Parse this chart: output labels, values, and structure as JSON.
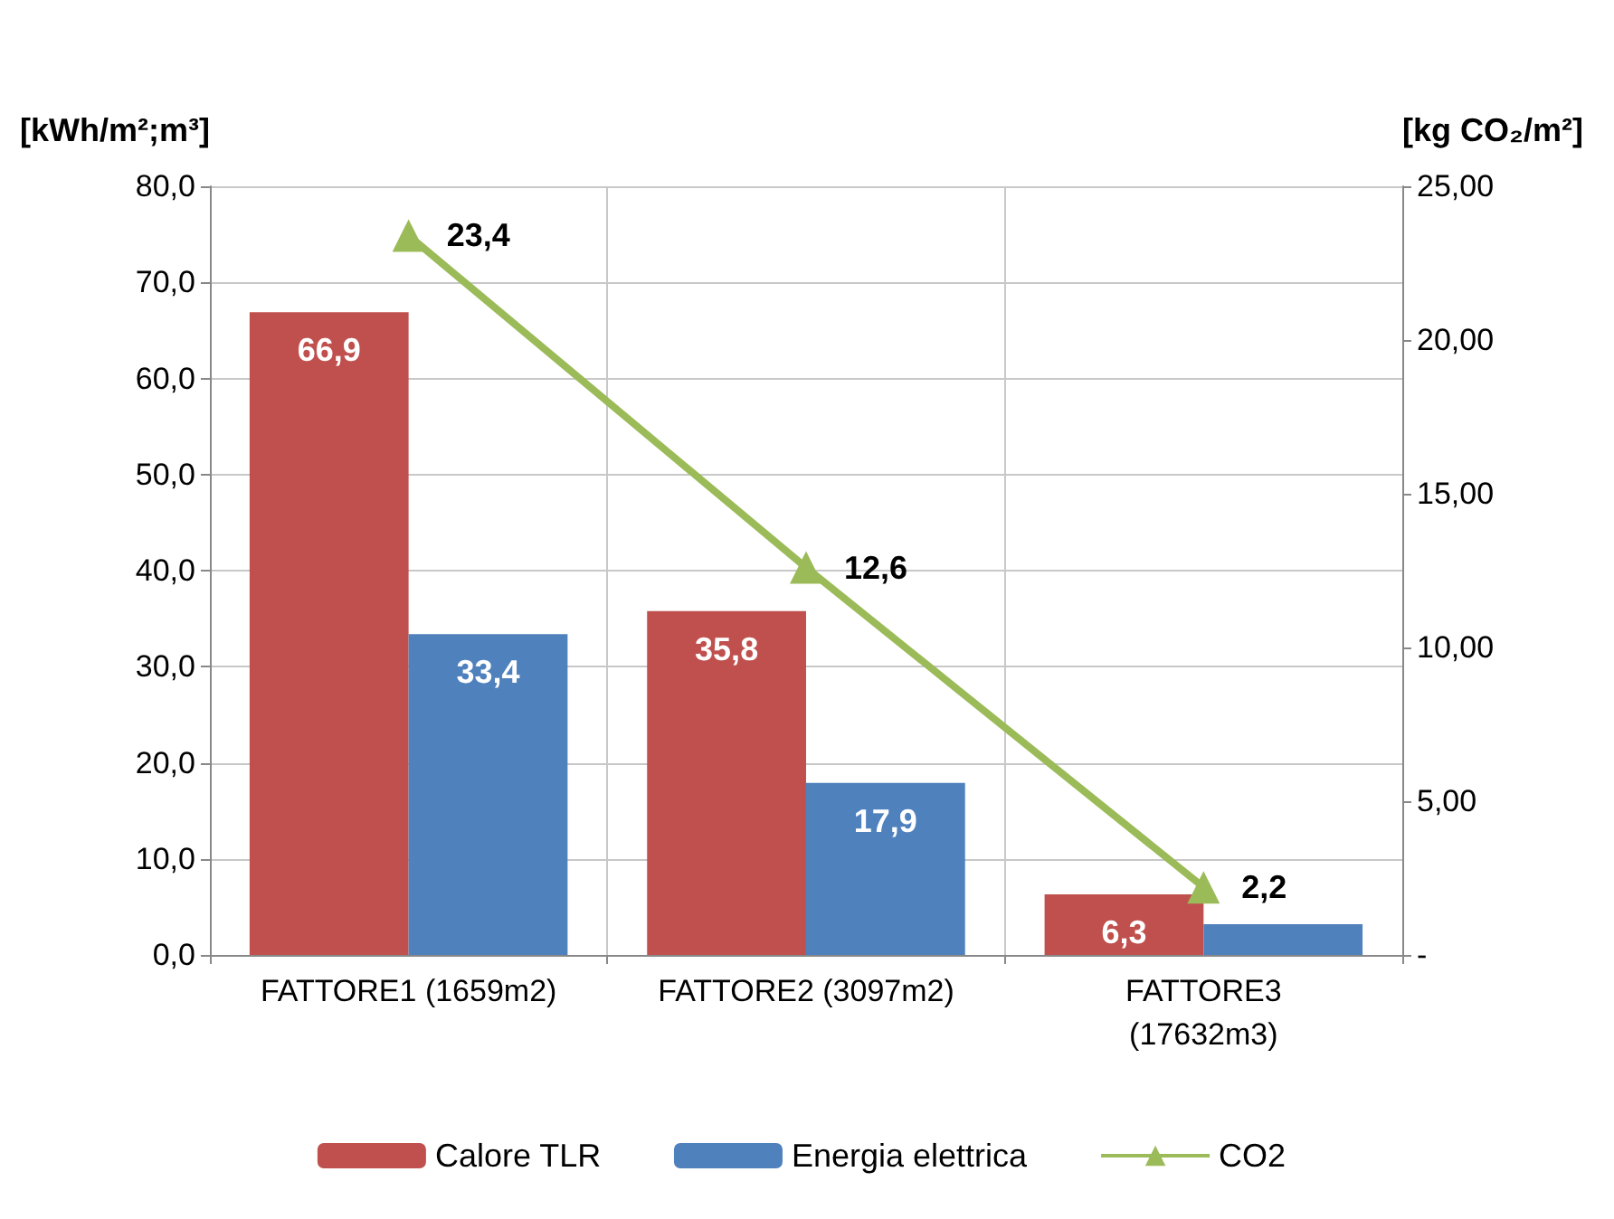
{
  "chart_data": {
    "type": "bar",
    "ylabel": "[kWh/m²;m³]",
    "y2label": "[kg CO₂/m²]",
    "categories": [
      "FATTORE1 (1659m2)",
      "FATTORE2 (3097m2)",
      "FATTORE3\n(17632m3)"
    ],
    "series": [
      {
        "name": "Calore TLR",
        "color": "#c0504d",
        "values": [
          66.9,
          35.8,
          6.3
        ],
        "value_labels": [
          "66,9",
          "35,8",
          "6,3"
        ]
      },
      {
        "name": "Energia elettrica",
        "color": "#4f81bd",
        "values": [
          33.4,
          17.9,
          3.2
        ],
        "value_labels": [
          "33,4",
          "17,9",
          null
        ]
      },
      {
        "name": "CO2",
        "type": "line",
        "axis": "y2",
        "marker": "triangle",
        "color": "#9bbb59",
        "values": [
          23.4,
          12.6,
          2.2
        ],
        "value_labels": [
          "23,4",
          "12,6",
          "2,2"
        ]
      }
    ],
    "ylim": [
      0,
      80
    ],
    "yticks": [
      {
        "value": 0,
        "label": "0,0"
      },
      {
        "value": 10,
        "label": "10,0"
      },
      {
        "value": 20,
        "label": "20,0"
      },
      {
        "value": 30,
        "label": "30,0"
      },
      {
        "value": 40,
        "label": "40,0"
      },
      {
        "value": 50,
        "label": "50,0"
      },
      {
        "value": 60,
        "label": "60,0"
      },
      {
        "value": 70,
        "label": "70,0"
      },
      {
        "value": 80,
        "label": "80,0"
      }
    ],
    "y2lim": [
      0,
      25
    ],
    "y2ticks": [
      {
        "value": 0,
        "label": "-"
      },
      {
        "value": 5,
        "label": "5,00"
      },
      {
        "value": 10,
        "label": "10,00"
      },
      {
        "value": 15,
        "label": "15,00"
      },
      {
        "value": 20,
        "label": "20,00"
      },
      {
        "value": 25,
        "label": "25,00"
      }
    ],
    "grid": true,
    "legend": "bottom"
  }
}
